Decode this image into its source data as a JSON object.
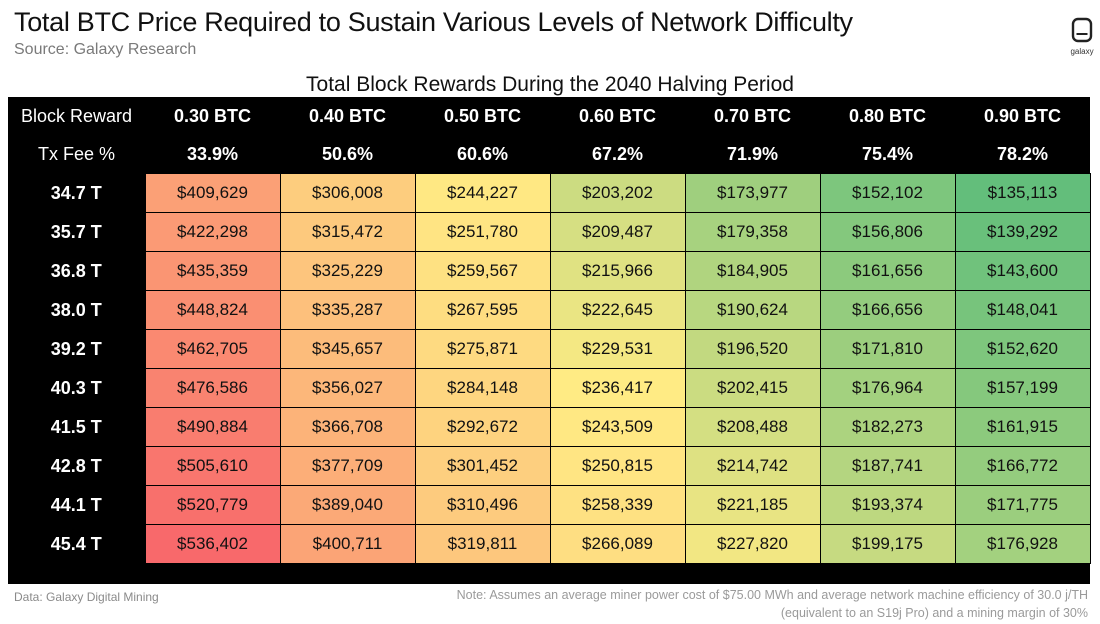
{
  "header": {
    "title": "Total BTC Price Required to Sustain Various Levels of Network Difficulty",
    "subtitle": "Source: Galaxy Research",
    "logo_text": "galaxy"
  },
  "chart_data": {
    "type": "table",
    "title": "Total Block Rewards During the 2040 Halving Period",
    "row_label_header": "Block Reward",
    "fee_label_header": "Tx Fee %",
    "columns": [
      {
        "block_reward": "0.30 BTC",
        "tx_fee_pct": "33.9%"
      },
      {
        "block_reward": "0.40 BTC",
        "tx_fee_pct": "50.6%"
      },
      {
        "block_reward": "0.50 BTC",
        "tx_fee_pct": "60.6%"
      },
      {
        "block_reward": "0.60 BTC",
        "tx_fee_pct": "67.2%"
      },
      {
        "block_reward": "0.70 BTC",
        "tx_fee_pct": "71.9%"
      },
      {
        "block_reward": "0.80 BTC",
        "tx_fee_pct": "75.4%"
      },
      {
        "block_reward": "0.90 BTC",
        "tx_fee_pct": "78.2%"
      }
    ],
    "rows": [
      {
        "difficulty": "34.7 T",
        "values": [
          "$409,629",
          "$306,008",
          "$244,227",
          "$203,202",
          "$173,977",
          "$152,102",
          "$135,113"
        ]
      },
      {
        "difficulty": "35.7 T",
        "values": [
          "$422,298",
          "$315,472",
          "$251,780",
          "$209,487",
          "$179,358",
          "$156,806",
          "$139,292"
        ]
      },
      {
        "difficulty": "36.8 T",
        "values": [
          "$435,359",
          "$325,229",
          "$259,567",
          "$215,966",
          "$184,905",
          "$161,656",
          "$143,600"
        ]
      },
      {
        "difficulty": "38.0 T",
        "values": [
          "$448,824",
          "$335,287",
          "$267,595",
          "$222,645",
          "$190,624",
          "$166,656",
          "$148,041"
        ]
      },
      {
        "difficulty": "39.2 T",
        "values": [
          "$462,705",
          "$345,657",
          "$275,871",
          "$229,531",
          "$196,520",
          "$171,810",
          "$152,620"
        ]
      },
      {
        "difficulty": "40.3 T",
        "values": [
          "$476,586",
          "$356,027",
          "$284,148",
          "$236,417",
          "$202,415",
          "$176,964",
          "$157,199"
        ]
      },
      {
        "difficulty": "41.5 T",
        "values": [
          "$490,884",
          "$366,708",
          "$292,672",
          "$243,509",
          "$208,488",
          "$182,273",
          "$161,915"
        ]
      },
      {
        "difficulty": "42.8 T",
        "values": [
          "$505,610",
          "$377,709",
          "$301,452",
          "$250,815",
          "$214,742",
          "$187,741",
          "$166,772"
        ]
      },
      {
        "difficulty": "44.1 T",
        "values": [
          "$520,779",
          "$389,040",
          "$310,496",
          "$258,339",
          "$221,185",
          "$193,374",
          "$171,775"
        ]
      },
      {
        "difficulty": "45.4 T",
        "values": [
          "$536,402",
          "$400,711",
          "$319,811",
          "$266,089",
          "$227,820",
          "$199,175",
          "$176,928"
        ]
      }
    ],
    "color_scale": {
      "low": "#63be7b",
      "mid": "#ffeb84",
      "high": "#f8696b"
    }
  },
  "footer": {
    "data_source": "Data: Galaxy Digital Mining",
    "note_line1": "Note: Assumes an average miner power cost of $75.00 MWh and average network machine efficiency of 30.0 j/TH",
    "note_line2": "(equivalent to an S19j Pro) and a mining margin of 30%"
  }
}
